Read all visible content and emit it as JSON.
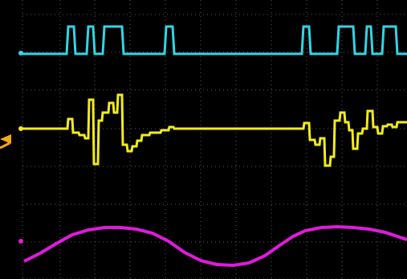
{
  "display": {
    "background": "#000000",
    "grid_color": "#5a5a5a",
    "divisions": {
      "horizontal": 10,
      "vertical": 8
    }
  },
  "channels": [
    {
      "id": "ch1",
      "color": "#33d4e6",
      "marker_icon": "cyan-ground-marker",
      "shape": "digital-pulse-train"
    },
    {
      "id": "ch2",
      "color": "#f2ec1a",
      "marker_icon": "yellow-ground-marker",
      "shape": "stepped-analog"
    },
    {
      "id": "ch3",
      "color": "#e01adc",
      "marker_icon": "magenta-ground-marker",
      "shape": "smooth-envelope"
    }
  ],
  "trigger": {
    "color": "#f2a81a",
    "icon": "trigger-level-marker"
  }
}
